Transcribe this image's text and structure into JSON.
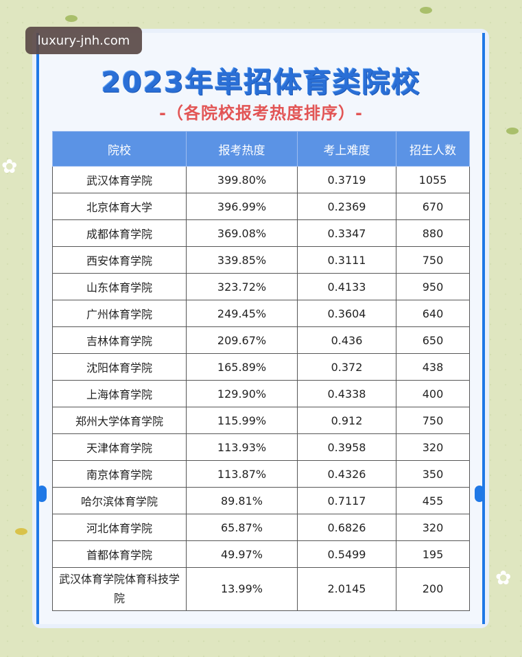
{
  "watermark": "luxury-jnh.com",
  "title": "2023年单招体育类院校",
  "subtitle": "-（各院校报考热度排序）-",
  "table": {
    "headers": [
      "院校",
      "报考热度",
      "考上难度",
      "招生人数"
    ],
    "rows": [
      [
        "武汉体育学院",
        "399.80%",
        "0.3719",
        "1055"
      ],
      [
        "北京体育大学",
        "396.99%",
        "0.2369",
        "670"
      ],
      [
        "成都体育学院",
        "369.08%",
        "0.3347",
        "880"
      ],
      [
        "西安体育学院",
        "339.85%",
        "0.3111",
        "750"
      ],
      [
        "山东体育学院",
        "323.72%",
        "0.4133",
        "950"
      ],
      [
        "广州体育学院",
        "249.45%",
        "0.3604",
        "640"
      ],
      [
        "吉林体育学院",
        "209.67%",
        "0.436",
        "650"
      ],
      [
        "沈阳体育学院",
        "165.89%",
        "0.372",
        "438"
      ],
      [
        "上海体育学院",
        "129.90%",
        "0.4338",
        "400"
      ],
      [
        "郑州大学体育学院",
        "115.99%",
        "0.912",
        "750"
      ],
      [
        "天津体育学院",
        "113.93%",
        "0.3958",
        "320"
      ],
      [
        "南京体育学院",
        "113.87%",
        "0.4326",
        "350"
      ],
      [
        "哈尔滨体育学院",
        "89.81%",
        "0.7117",
        "455"
      ],
      [
        "河北体育学院",
        "65.87%",
        "0.6826",
        "320"
      ],
      [
        "首都体育学院",
        "49.97%",
        "0.5499",
        "195"
      ],
      [
        "武汉体育学院体育科技学院",
        "13.99%",
        "2.0145",
        "200"
      ]
    ]
  },
  "colors": {
    "title": "#2a6fd6",
    "subtitle": "#e25555",
    "header_bg": "#5b93e5",
    "accent": "#1f78e6",
    "background": "#dfe6c0"
  }
}
